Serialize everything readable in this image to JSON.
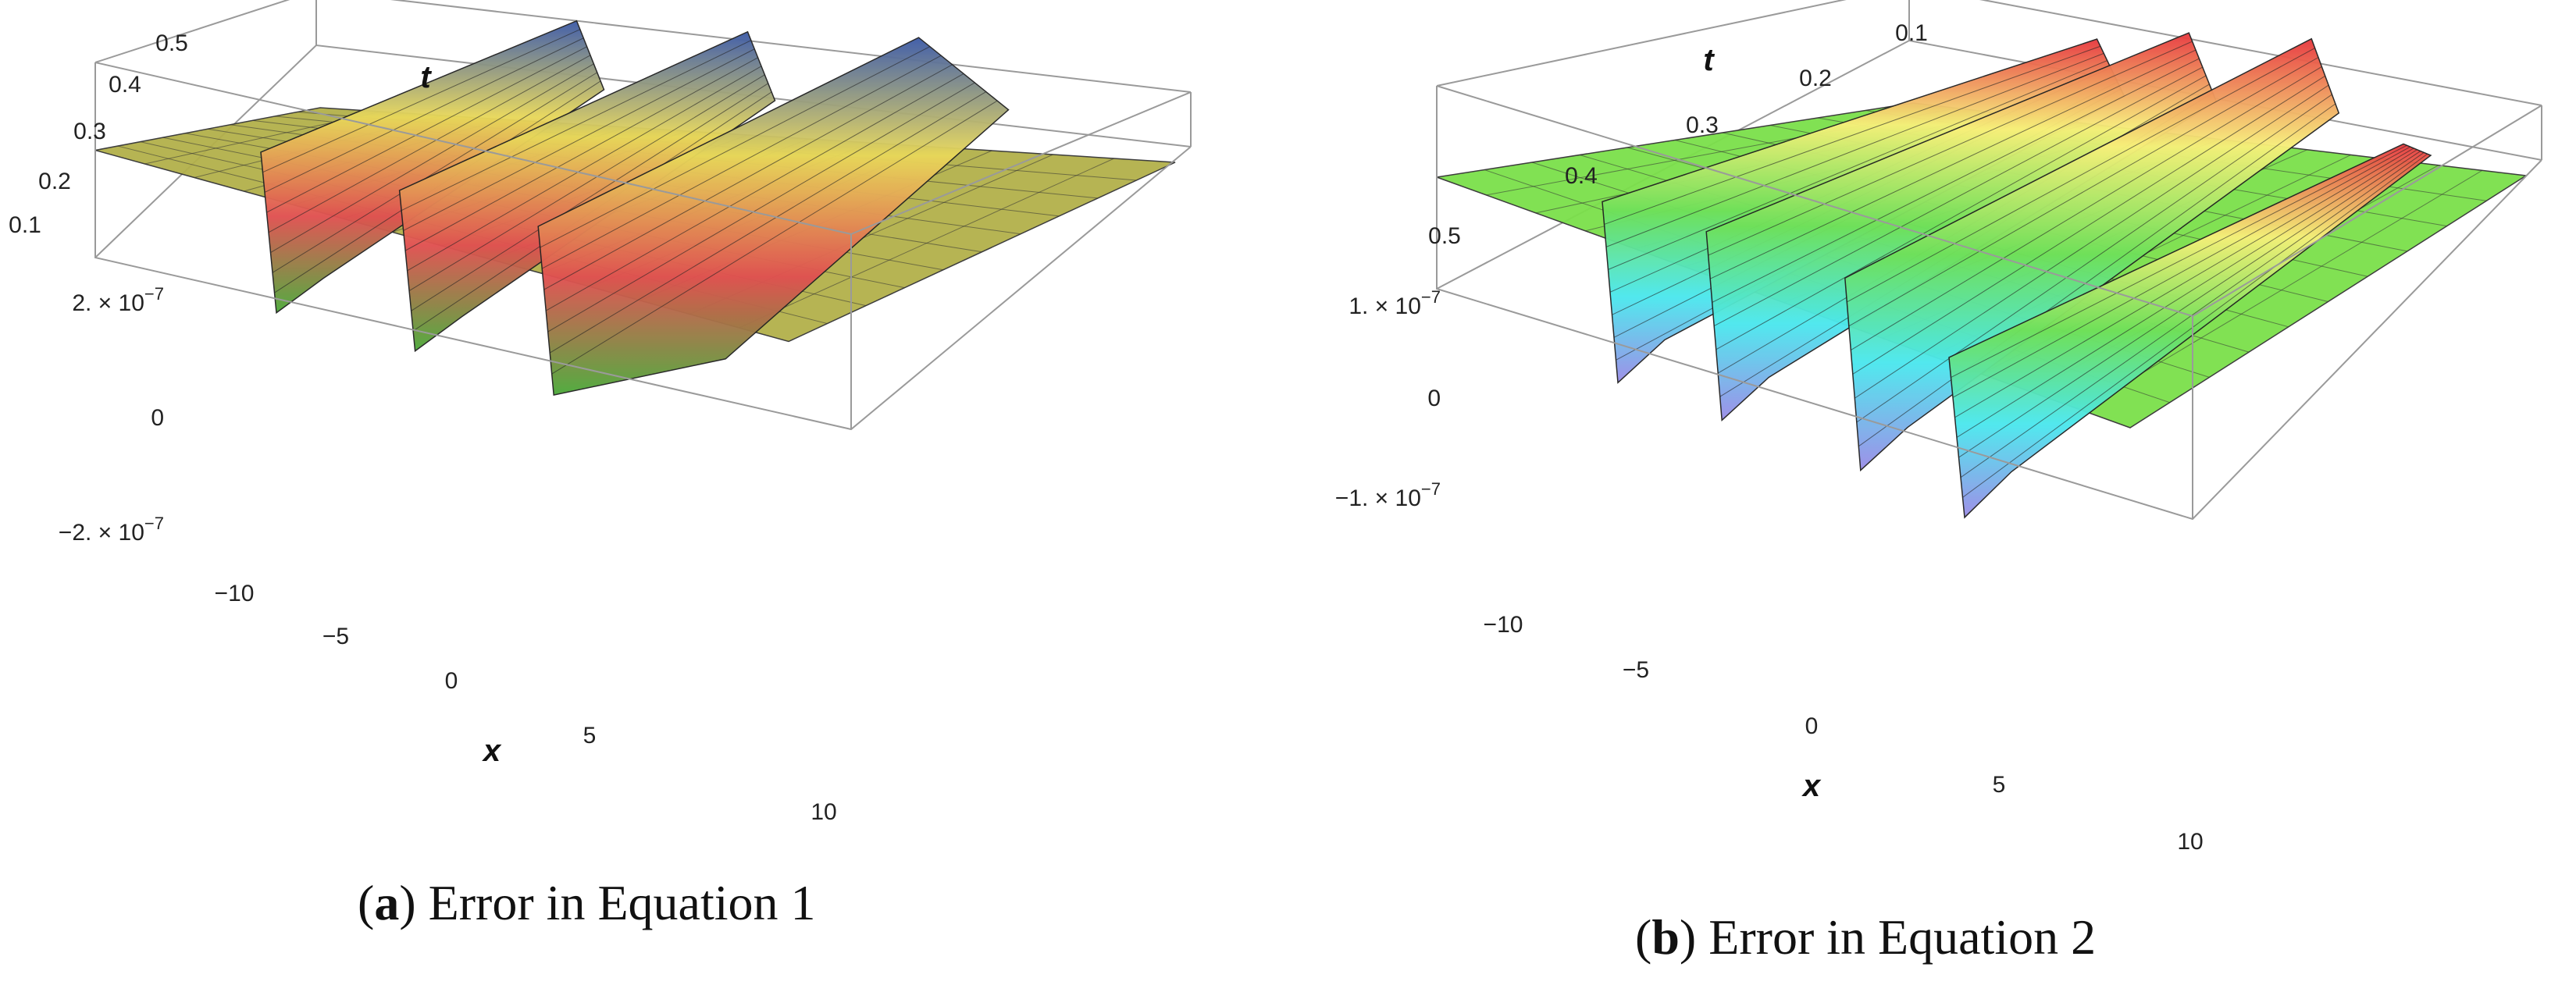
{
  "chart_data": [
    {
      "type": "surface3d",
      "caption": {
        "letter": "a",
        "text": "Error in Equation 1"
      },
      "x_axis": {
        "label": "x",
        "ticks": [
          "−10",
          "−5",
          "0",
          "5",
          "10"
        ],
        "range": [
          -10,
          10
        ]
      },
      "t_axis": {
        "label": "t",
        "ticks": [
          "0.1",
          "0.2",
          "0.3",
          "0.4",
          "0.5"
        ],
        "range": [
          0.1,
          0.5
        ]
      },
      "z_axis": {
        "ticks": [
          "2. × 10−7",
          "0",
          "−2. × 10−7"
        ],
        "range": [
          -2.2e-07,
          2.2e-07
        ]
      },
      "grid": false,
      "colormap": [
        "#3c5aa8",
        "#e8d85a",
        "#e05050",
        "#4caa3a"
      ],
      "surface_color_flat": "#b3b04a",
      "features": [
        {
          "x": -5,
          "kind": "spike",
          "peak": 2e-07,
          "trough": -2e-07
        },
        {
          "x": -1,
          "kind": "spike",
          "peak": 2e-07,
          "trough": -2e-07
        },
        {
          "x": 3,
          "kind": "hump",
          "peak": 2.1e-07,
          "trough": -2.1e-07
        }
      ]
    },
    {
      "type": "surface3d",
      "caption": {
        "letter": "b",
        "text": "Error in Equation 2"
      },
      "x_axis": {
        "label": "x",
        "ticks": [
          "−10",
          "−5",
          "0",
          "5",
          "10"
        ],
        "range": [
          -10,
          10
        ]
      },
      "t_axis": {
        "label": "t",
        "ticks": [
          "0.1",
          "0.2",
          "0.3",
          "0.4",
          "0.5"
        ],
        "range": [
          0.1,
          0.5
        ]
      },
      "z_axis": {
        "ticks": [
          "1. × 10−7",
          "0",
          "−1. × 10−7"
        ],
        "range": [
          -1.6e-07,
          1.6e-07
        ]
      },
      "grid": false,
      "colormap": [
        "#e8383e",
        "#f7f07a",
        "#6fe05a",
        "#4be8ee",
        "#9b8ce8"
      ],
      "surface_color_flat": "#7be04a",
      "features": [
        {
          "x": -5,
          "kind": "spike",
          "peak": 1e-07,
          "trough": -1.5e-07
        },
        {
          "x": -2,
          "kind": "spike",
          "peak": 1.2e-07,
          "trough": -1.5e-07
        },
        {
          "x": 2,
          "kind": "spike",
          "peak": 1.3e-07,
          "trough": -1.5e-07
        },
        {
          "x": 5,
          "kind": "spike",
          "peak": 2e-08,
          "trough": -1.6e-07
        }
      ]
    }
  ]
}
